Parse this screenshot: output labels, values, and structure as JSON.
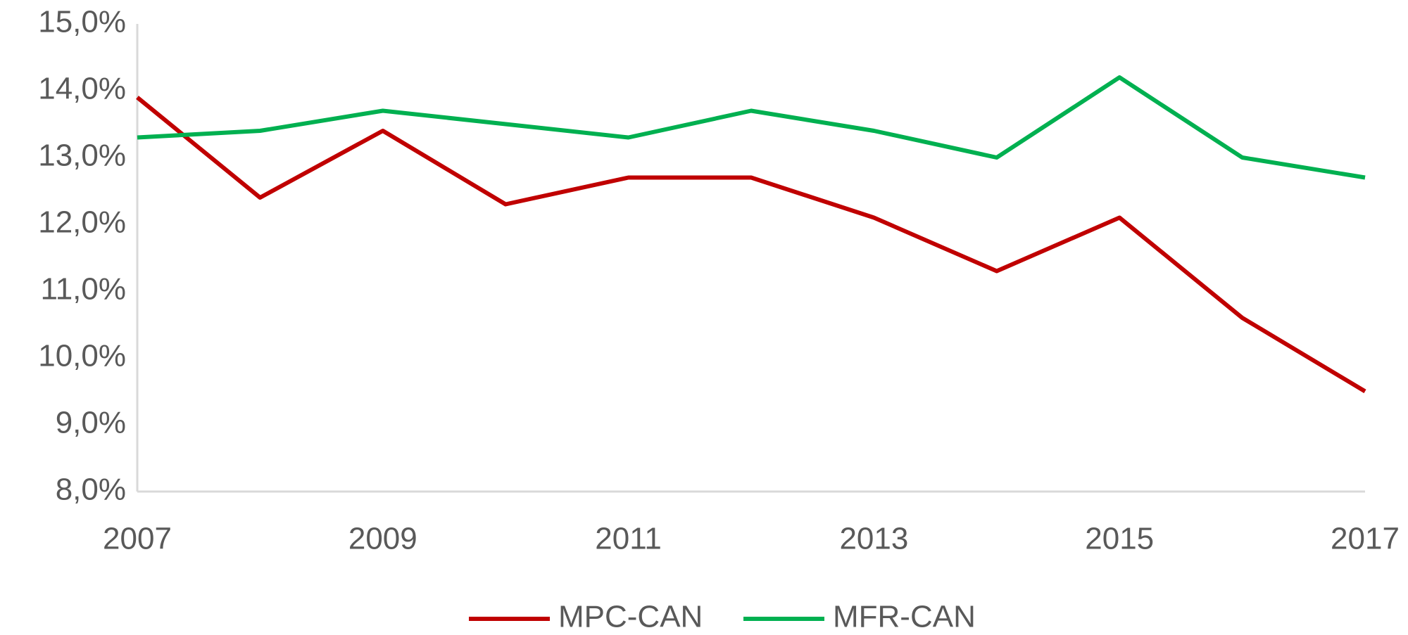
{
  "chart_data": {
    "type": "line",
    "x": [
      2007,
      2008,
      2009,
      2010,
      2011,
      2012,
      2013,
      2014,
      2015,
      2016,
      2017
    ],
    "series": [
      {
        "name": "MPC-CAN",
        "color": "#c00000",
        "values": [
          13.9,
          12.4,
          13.4,
          12.3,
          12.7,
          12.7,
          12.1,
          11.3,
          12.1,
          10.6,
          9.5
        ]
      },
      {
        "name": "MFR-CAN",
        "color": "#00b050",
        "values": [
          13.3,
          13.4,
          13.7,
          13.5,
          13.3,
          13.7,
          13.4,
          13.0,
          14.2,
          13.0,
          12.7
        ]
      }
    ],
    "xlim": [
      2007,
      2017
    ],
    "xticks": [
      2007,
      2009,
      2011,
      2013,
      2015,
      2017
    ],
    "ylim": [
      8,
      15
    ],
    "yticks": [
      {
        "value": 8,
        "label": "8,0%"
      },
      {
        "value": 9,
        "label": "9,0%"
      },
      {
        "value": 10,
        "label": "10,0%"
      },
      {
        "value": 11,
        "label": "11,0%"
      },
      {
        "value": 12,
        "label": "12,0%"
      },
      {
        "value": 13,
        "label": "13,0%"
      },
      {
        "value": 14,
        "label": "14,0%"
      },
      {
        "value": 15,
        "label": "15,0%"
      }
    ],
    "grid": false,
    "legend": "bottom"
  }
}
